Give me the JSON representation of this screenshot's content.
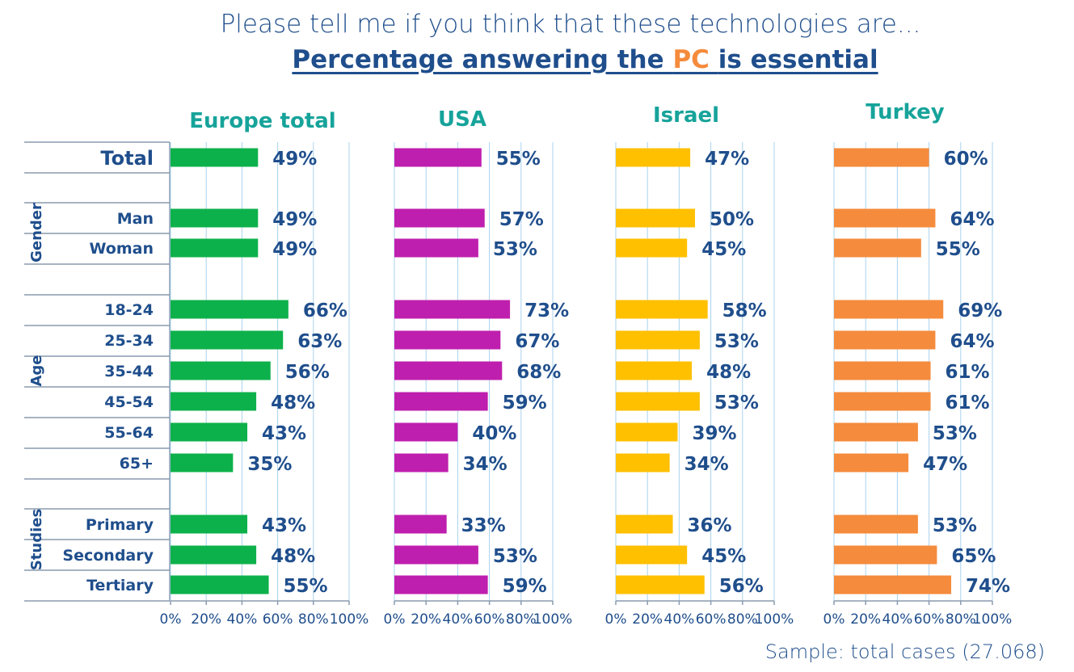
{
  "title": {
    "line1": "Please tell me if you think that these technologies are...",
    "line2_before": "Percentage answering the ",
    "line2_highlight": "PC ",
    "line2_after": "is essential"
  },
  "sample_note": "Sample: total cases (27.068)",
  "colors": {
    "title": "#1f4e8c",
    "highlight": "#f58b3c",
    "panel_title": "#16a39a",
    "grid": "#a9d3ee",
    "divider": "#8a9aae",
    "value_label": "#1f4e8c"
  },
  "chart_data": {
    "type": "bar",
    "orientation": "horizontal",
    "xlim": [
      0,
      100
    ],
    "x_ticks": [
      "0%",
      "20%",
      "40%",
      "60%",
      "80%",
      "100%"
    ],
    "groups": [
      {
        "name": "",
        "categories": [
          "Total"
        ]
      },
      {
        "name": "Gender",
        "categories": [
          "Man",
          "Woman"
        ]
      },
      {
        "name": "Age",
        "categories": [
          "18-24",
          "25-34",
          "35-44",
          "45-54",
          "55-64",
          "65+"
        ]
      },
      {
        "name": "Studies",
        "categories": [
          "Primary",
          "Secondary",
          "Tertiary"
        ]
      }
    ],
    "categories": [
      "Total",
      "Man",
      "Woman",
      "18-24",
      "25-34",
      "35-44",
      "45-54",
      "55-64",
      "65+",
      "Primary",
      "Secondary",
      "Tertiary"
    ],
    "series": [
      {
        "name": "Europe total",
        "color": "#0db14b",
        "values": [
          49,
          49,
          49,
          66,
          63,
          56,
          48,
          43,
          35,
          43,
          48,
          55
        ],
        "labels": [
          "49%",
          "49%",
          "49%",
          "66%",
          "63%",
          "56%",
          "48%",
          "43%",
          "35%",
          "43%",
          "48%",
          "55%"
        ]
      },
      {
        "name": "USA",
        "color": "#bf1fae",
        "values": [
          55,
          57,
          53,
          73,
          67,
          68,
          59,
          40,
          34,
          33,
          53,
          59
        ],
        "labels": [
          "55%",
          "57%",
          "53%",
          "73%",
          "67%",
          "68%",
          "59%",
          "40%",
          "34%",
          "33%",
          "53%",
          "59%"
        ]
      },
      {
        "name": "Israel",
        "color": "#ffc000",
        "values": [
          47,
          50,
          45,
          58,
          53,
          48,
          53,
          39,
          34,
          36,
          45,
          56
        ],
        "labels": [
          "47%",
          "50%",
          "45%",
          "58%",
          "53%",
          "48%",
          "53%",
          "39%",
          "34%",
          "36%",
          "45%",
          "56%"
        ]
      },
      {
        "name": "Turkey",
        "color": "#f58b3c",
        "values": [
          60,
          64,
          55,
          69,
          64,
          61,
          61,
          53,
          47,
          53,
          65,
          74
        ],
        "labels": [
          "60%",
          "64%",
          "55%",
          "69%",
          "64%",
          "61%",
          "61%",
          "53%",
          "47%",
          "53%",
          "65%",
          "74%"
        ]
      }
    ]
  }
}
